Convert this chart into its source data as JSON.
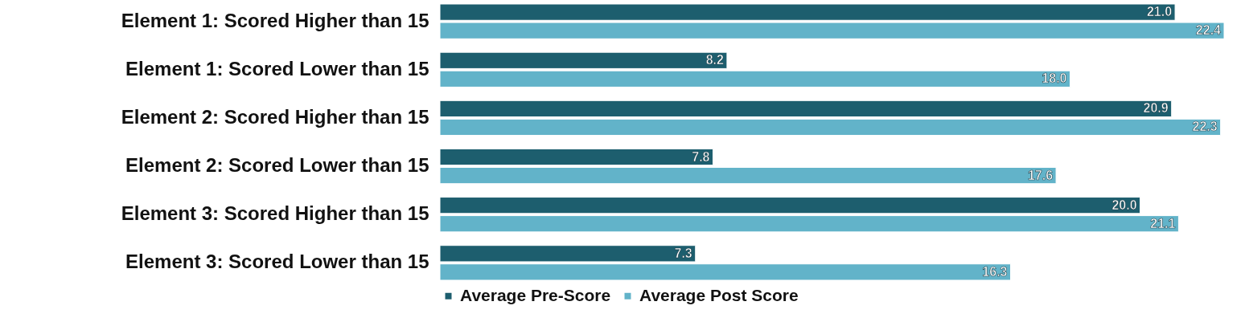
{
  "chart_data": {
    "type": "bar",
    "orientation": "horizontal",
    "categories": [
      "Element 1: Scored Higher than 15",
      "Element 1: Scored Lower than 15",
      "Element 2: Scored Higher than 15",
      "Element 2: Scored Lower than 15",
      "Element 3: Scored Higher than 15",
      "Element 3: Scored Lower than 15"
    ],
    "series": [
      {
        "name": "Average Pre-Score",
        "color": "#1d5e6e",
        "values": [
          21.0,
          8.2,
          20.9,
          7.8,
          20.0,
          7.3
        ],
        "value_labels": [
          "21.0",
          "8.2",
          "20.9",
          "7.8",
          "20.0",
          "7.3"
        ]
      },
      {
        "name": "Average Post Score",
        "color": "#62b3c9",
        "values": [
          22.4,
          18.0,
          22.3,
          17.6,
          21.1,
          16.3
        ],
        "value_labels": [
          "22.4",
          "18.0",
          "22.3",
          "17.6",
          "21.1",
          "16.3"
        ]
      }
    ],
    "legend": "bottom"
  }
}
